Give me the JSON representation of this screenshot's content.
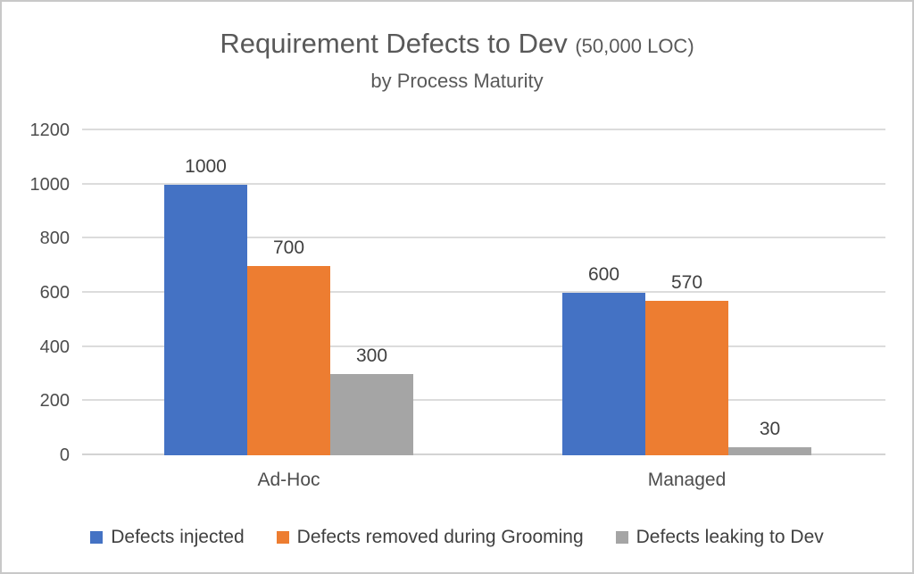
{
  "page": {
    "background": "#ffffff",
    "border_color": "#c8c8c8"
  },
  "header": {
    "title": "Requirement Defects to Dev",
    "title_suffix": "(50,000 LOC)",
    "subtitle": "by Process Maturity"
  },
  "chart_data": {
    "type": "bar",
    "title": "Requirement Defects to Dev (50,000 LOC)",
    "subtitle": "by Process Maturity",
    "categories": [
      "Ad-Hoc",
      "Managed"
    ],
    "series": [
      {
        "name": "Defects injected",
        "color": "#4472C4",
        "values": [
          1000,
          600
        ]
      },
      {
        "name": "Defects removed during Grooming",
        "color": "#ED7D31",
        "values": [
          700,
          570
        ]
      },
      {
        "name": "Defects leaking to Dev",
        "color": "#A5A5A5",
        "values": [
          300,
          30
        ]
      }
    ],
    "ylim": [
      0,
      1200
    ],
    "y_ticks": [
      0,
      200,
      400,
      600,
      800,
      1000,
      1200
    ],
    "grid": true,
    "gridline_color": "#dcdcdc",
    "legend_position": "bottom",
    "data_labels_visible": true,
    "xlabel": "",
    "ylabel": ""
  }
}
